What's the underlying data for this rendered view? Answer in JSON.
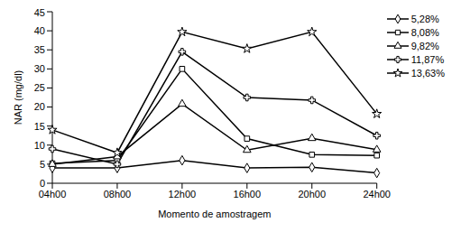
{
  "chart_data": {
    "type": "line",
    "x_label": "Momento de amostragem",
    "y_label": "NAR (mg/dl)",
    "categories": [
      "04h00",
      "08h00",
      "12h00",
      "16h00",
      "20h00",
      "24h00"
    ],
    "ylim": [
      0,
      45
    ],
    "yticks": [
      0,
      5,
      10,
      15,
      20,
      25,
      30,
      35,
      40,
      45
    ],
    "grid": false,
    "legend": "right",
    "series": [
      {
        "name": "5,28%",
        "color": "#000000",
        "marker": "diamond",
        "values": [
          4,
          4,
          6,
          4,
          4.2,
          2.7
        ]
      },
      {
        "name": "8,08%",
        "color": "#000000",
        "marker": "square",
        "values": [
          5.2,
          6,
          30,
          11.7,
          7.5,
          7.3
        ]
      },
      {
        "name": "9,82%",
        "color": "#000000",
        "marker": "triangle",
        "values": [
          5,
          7,
          20.8,
          8.7,
          11.8,
          8.8
        ]
      },
      {
        "name": "11,87%",
        "color": "#000000",
        "marker": "cross",
        "values": [
          9,
          5,
          34.5,
          22.5,
          21.8,
          12.5
        ]
      },
      {
        "name": "13,63%",
        "color": "#000000",
        "marker": "star",
        "values": [
          14,
          8,
          39.7,
          35.3,
          39.7,
          18.2
        ]
      }
    ]
  }
}
